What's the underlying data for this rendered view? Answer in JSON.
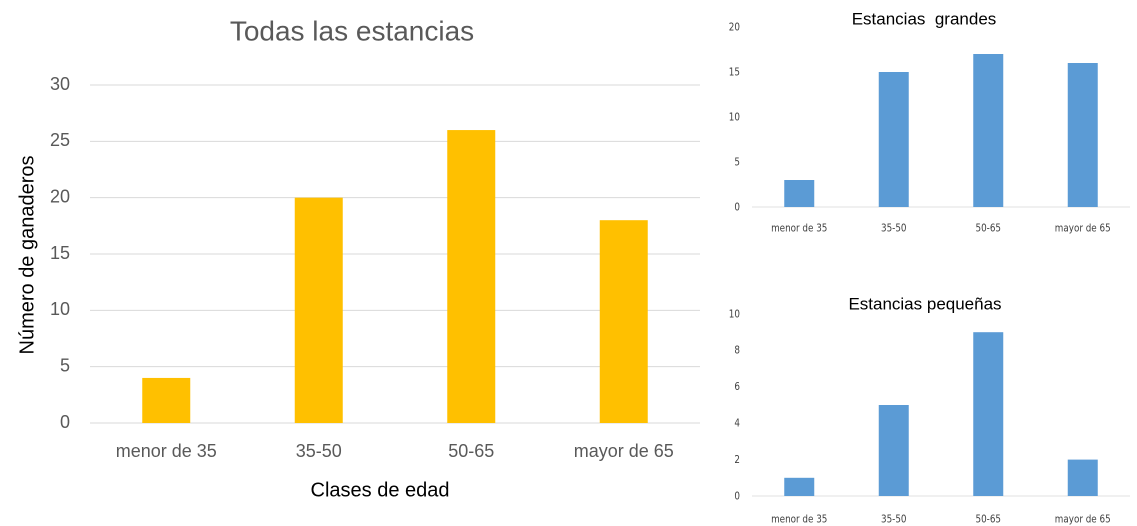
{
  "chart_data": [
    {
      "type": "bar",
      "title": "Todas las estancias",
      "x_label": "Clases de edad",
      "y_label": "Número de ganaderos",
      "categories": [
        "menor de 35",
        "35-50",
        "50-65",
        "mayor de 65"
      ],
      "values": [
        4,
        20,
        26,
        18
      ],
      "color": "#ffc000",
      "ylim": [
        0,
        30
      ],
      "yticks": [
        0,
        5,
        10,
        15,
        20,
        25,
        30
      ],
      "grid": true
    },
    {
      "type": "bar",
      "title": "Estancias  grandes",
      "categories": [
        "menor de 35",
        "35-50",
        "50-65",
        "mayor de 65"
      ],
      "values": [
        3,
        15,
        17,
        16
      ],
      "color": "#5b9bd5",
      "ylim": [
        0,
        20
      ],
      "yticks": [
        0,
        5,
        10,
        15,
        20
      ],
      "grid": false
    },
    {
      "type": "bar",
      "title": "Estancias pequeñas",
      "categories": [
        "menor de 35",
        "35-50",
        "50-65",
        "mayor de 65"
      ],
      "values": [
        1,
        5,
        9,
        2
      ],
      "color": "#5b9bd5",
      "ylim": [
        0,
        10
      ],
      "yticks": [
        0,
        2,
        4,
        6,
        8,
        10
      ],
      "grid": false
    }
  ]
}
